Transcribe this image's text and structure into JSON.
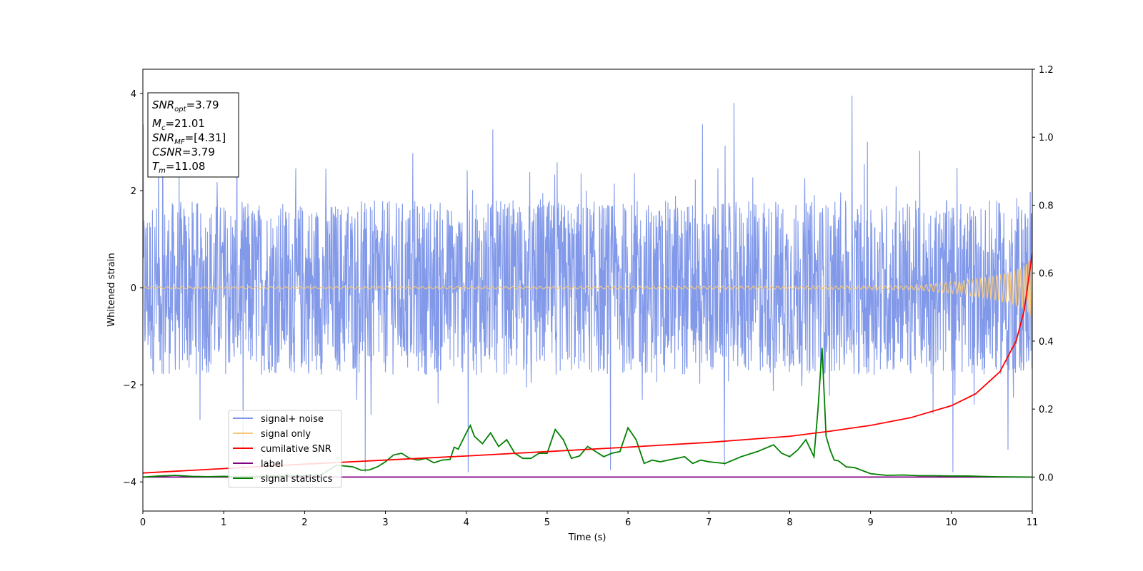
{
  "chart_data": {
    "type": "line",
    "title": "",
    "xlabel": "Time (s)",
    "ylabel": "Whitened strain",
    "xlim": [
      0,
      11
    ],
    "ylim": [
      -4.6,
      4.5
    ],
    "y2lim": [
      -0.1,
      1.2
    ],
    "xticks": [
      "0",
      "1",
      "2",
      "3",
      "4",
      "5",
      "6",
      "7",
      "8",
      "9",
      "10",
      "11"
    ],
    "yticks": [
      "4",
      "2",
      "0",
      "−2",
      "−4"
    ],
    "y2ticks": [
      "1.2",
      "1.0",
      "0.8",
      "0.6",
      "0.4",
      "0.2",
      "0.0"
    ],
    "grid": false,
    "legend_placement": "lower-left",
    "annotation": {
      "snr_opt": "=3.79",
      "mc": "=21.01",
      "snr_mf": "=[4.31]",
      "csnr": "=3.79",
      "tm": "=11.08"
    },
    "series": [
      {
        "name": "signal+ noise",
        "color": "#7b94e8",
        "axis": "left",
        "noise_band": {
          "typical_amplitude": 1.8,
          "max_peak": 4.1,
          "min_trough": -3.8
        }
      },
      {
        "name": "signal only",
        "color": "#f5c87a",
        "axis": "left",
        "chirp": {
          "start_amplitude": 0.02,
          "end_amplitude": 0.6,
          "end_time": 11
        }
      },
      {
        "name": "cumilative SNR",
        "color": "#ff0000",
        "axis": "right",
        "x": [
          0,
          1,
          2,
          3,
          4,
          5,
          6,
          7,
          8,
          8.5,
          9,
          9.5,
          10,
          10.3,
          10.6,
          10.8,
          10.9,
          11
        ],
        "y": [
          0.012,
          0.025,
          0.038,
          0.05,
          0.062,
          0.075,
          0.088,
          0.102,
          0.12,
          0.135,
          0.152,
          0.175,
          0.21,
          0.245,
          0.31,
          0.4,
          0.49,
          0.66
        ]
      },
      {
        "name": "label",
        "color": "#800080",
        "axis": "right",
        "x": [
          0,
          11
        ],
        "y": [
          0.0,
          0.0
        ]
      },
      {
        "name": "signal statistics",
        "color": "#008000",
        "axis": "right",
        "x": [
          0,
          0.2,
          0.4,
          0.6,
          0.8,
          1,
          1.2,
          1.4,
          1.6,
          1.8,
          2,
          2.2,
          2.4,
          2.6,
          2.7,
          2.8,
          2.9,
          3,
          3.1,
          3.2,
          3.3,
          3.4,
          3.5,
          3.6,
          3.7,
          3.8,
          3.85,
          3.9,
          4,
          4.05,
          4.1,
          4.2,
          4.3,
          4.4,
          4.5,
          4.6,
          4.7,
          4.8,
          4.9,
          5,
          5.1,
          5.2,
          5.3,
          5.4,
          5.5,
          5.6,
          5.7,
          5.8,
          5.9,
          6,
          6.1,
          6.2,
          6.3,
          6.4,
          6.5,
          6.6,
          6.7,
          6.8,
          6.9,
          7,
          7.2,
          7.4,
          7.6,
          7.7,
          7.8,
          7.9,
          8,
          8.1,
          8.2,
          8.3,
          8.35,
          8.4,
          8.45,
          8.5,
          8.55,
          8.6,
          8.7,
          8.8,
          9,
          9.2,
          9.4,
          9.6,
          9.8,
          10,
          10.2,
          10.5,
          11
        ],
        "y": [
          0,
          0.003,
          0.005,
          0.002,
          0.001,
          0.002,
          0.001,
          0.002,
          0.003,
          0.004,
          0.005,
          0.006,
          0.035,
          0.03,
          0.02,
          0.021,
          0.03,
          0.045,
          0.065,
          0.07,
          0.055,
          0.05,
          0.055,
          0.042,
          0.05,
          0.052,
          0.088,
          0.082,
          0.13,
          0.152,
          0.12,
          0.098,
          0.13,
          0.09,
          0.11,
          0.07,
          0.055,
          0.055,
          0.07,
          0.07,
          0.14,
          0.11,
          0.055,
          0.062,
          0.09,
          0.075,
          0.06,
          0.07,
          0.075,
          0.145,
          0.11,
          0.04,
          0.05,
          0.045,
          0.05,
          0.055,
          0.06,
          0.04,
          0.05,
          0.045,
          0.04,
          0.06,
          0.075,
          0.085,
          0.095,
          0.07,
          0.06,
          0.08,
          0.11,
          0.06,
          0.2,
          0.38,
          0.12,
          0.08,
          0.05,
          0.048,
          0.03,
          0.028,
          0.01,
          0.005,
          0.006,
          0.004,
          0.004,
          0.003,
          0.003,
          0.001,
          0.0
        ]
      }
    ]
  }
}
